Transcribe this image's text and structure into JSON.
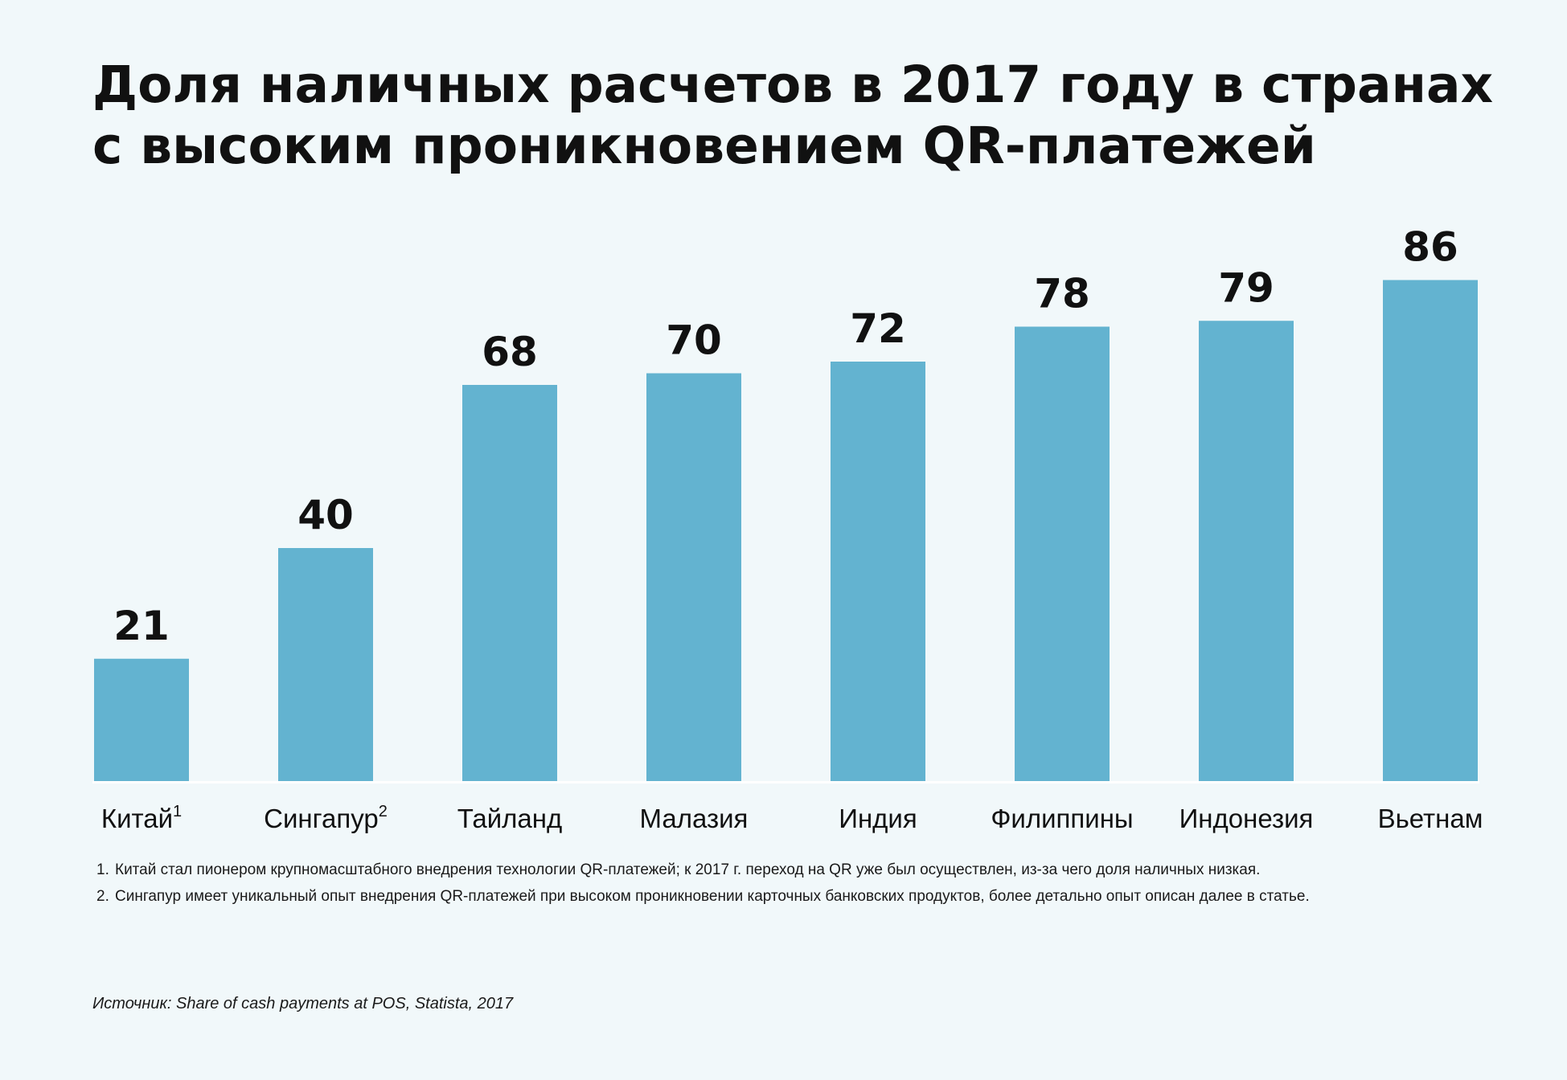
{
  "title": {
    "line1": "Доля наличных расчетов в 2017 году в странах",
    "line2": "с высоким проникновением QR-платежей"
  },
  "colors": {
    "bar": "#63b3d0",
    "background": "#f1f8fa",
    "text": "#111111"
  },
  "chart_data": {
    "type": "bar",
    "title": "Доля наличных расчетов в 2017 году в странах с высоким проникновением QR-платежей",
    "categories": [
      "Китай",
      "Сингапур",
      "Тайланд",
      "Малазия",
      "Индия",
      "Филиппины",
      "Индонезия",
      "Вьетнам"
    ],
    "category_superscripts": [
      "1",
      "2",
      "",
      "",
      "",
      "",
      "",
      ""
    ],
    "values": [
      21,
      40,
      68,
      70,
      72,
      78,
      79,
      86
    ],
    "data_labels": [
      "21",
      "40",
      "68",
      "70",
      "72",
      "78",
      "79",
      "86"
    ],
    "xlabel": "",
    "ylabel": "",
    "ylim": [
      0,
      100
    ],
    "grid": false,
    "legend": "none"
  },
  "footnotes": [
    {
      "num": "1.",
      "text": "Китай стал пионером крупномасштабного внедрения технологии QR-платежей; к 2017 г. переход на QR уже был осуществлен, из-за чего доля наличных низкая."
    },
    {
      "num": "2.",
      "text": "Сингапур имеет уникальный опыт внедрения QR-платежей при высоком проникновении карточных банковских продуктов, более детально опыт описан далее в статье."
    }
  ],
  "source": "Источник: Share of cash payments at POS, Statista, 2017"
}
